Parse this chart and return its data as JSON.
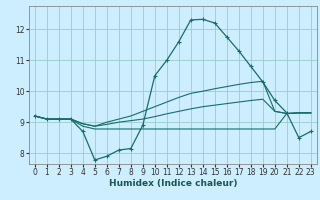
{
  "xlabel": "Humidex (Indice chaleur)",
  "background_color": "#cceeff",
  "grid_color": "#99cccc",
  "line_color": "#1a6b6b",
  "xlim": [
    -0.5,
    23.5
  ],
  "ylim": [
    7.65,
    12.75
  ],
  "yticks": [
    8,
    9,
    10,
    11,
    12
  ],
  "xticks": [
    0,
    1,
    2,
    3,
    4,
    5,
    6,
    7,
    8,
    9,
    10,
    11,
    12,
    13,
    14,
    15,
    16,
    17,
    18,
    19,
    20,
    21,
    22,
    23
  ],
  "series": [
    {
      "x": [
        0,
        1,
        2,
        3,
        4,
        5,
        6,
        7,
        8,
        9,
        10,
        11,
        12,
        13,
        14,
        15,
        16,
        17,
        18,
        19,
        20,
        21,
        22,
        23
      ],
      "y": [
        9.2,
        9.1,
        9.1,
        9.1,
        8.7,
        7.78,
        7.9,
        8.1,
        8.15,
        8.9,
        10.5,
        11.0,
        11.6,
        12.3,
        12.32,
        12.2,
        11.75,
        11.3,
        10.8,
        10.3,
        9.7,
        9.3,
        8.5,
        8.7
      ],
      "marker": true
    },
    {
      "x": [
        0,
        1,
        2,
        3,
        4,
        5,
        6,
        7,
        8,
        9,
        10,
        11,
        12,
        13,
        14,
        15,
        16,
        17,
        18,
        19,
        20,
        21,
        22,
        23
      ],
      "y": [
        9.2,
        9.1,
        9.1,
        9.1,
        8.95,
        8.87,
        9.0,
        9.1,
        9.2,
        9.35,
        9.5,
        9.65,
        9.8,
        9.93,
        10.0,
        10.08,
        10.15,
        10.22,
        10.28,
        10.32,
        9.35,
        9.28,
        9.3,
        9.3
      ],
      "marker": false
    },
    {
      "x": [
        0,
        1,
        2,
        3,
        4,
        5,
        6,
        7,
        8,
        9,
        10,
        11,
        12,
        13,
        14,
        15,
        16,
        17,
        18,
        19,
        20,
        21,
        22,
        23
      ],
      "y": [
        9.2,
        9.1,
        9.1,
        9.1,
        8.95,
        8.87,
        8.93,
        9.0,
        9.05,
        9.1,
        9.18,
        9.27,
        9.35,
        9.43,
        9.5,
        9.55,
        9.6,
        9.65,
        9.7,
        9.74,
        9.35,
        9.28,
        9.3,
        9.3
      ],
      "marker": false
    },
    {
      "x": [
        0,
        1,
        2,
        3,
        4,
        5,
        6,
        7,
        8,
        9,
        10,
        11,
        12,
        13,
        14,
        15,
        16,
        17,
        18,
        19,
        20,
        21,
        22,
        23
      ],
      "y": [
        9.2,
        9.1,
        9.1,
        9.1,
        8.87,
        8.78,
        8.78,
        8.78,
        8.78,
        8.78,
        8.78,
        8.78,
        8.78,
        8.78,
        8.78,
        8.78,
        8.78,
        8.78,
        8.78,
        8.78,
        8.78,
        9.28,
        9.3,
        9.3
      ],
      "marker": false
    }
  ]
}
